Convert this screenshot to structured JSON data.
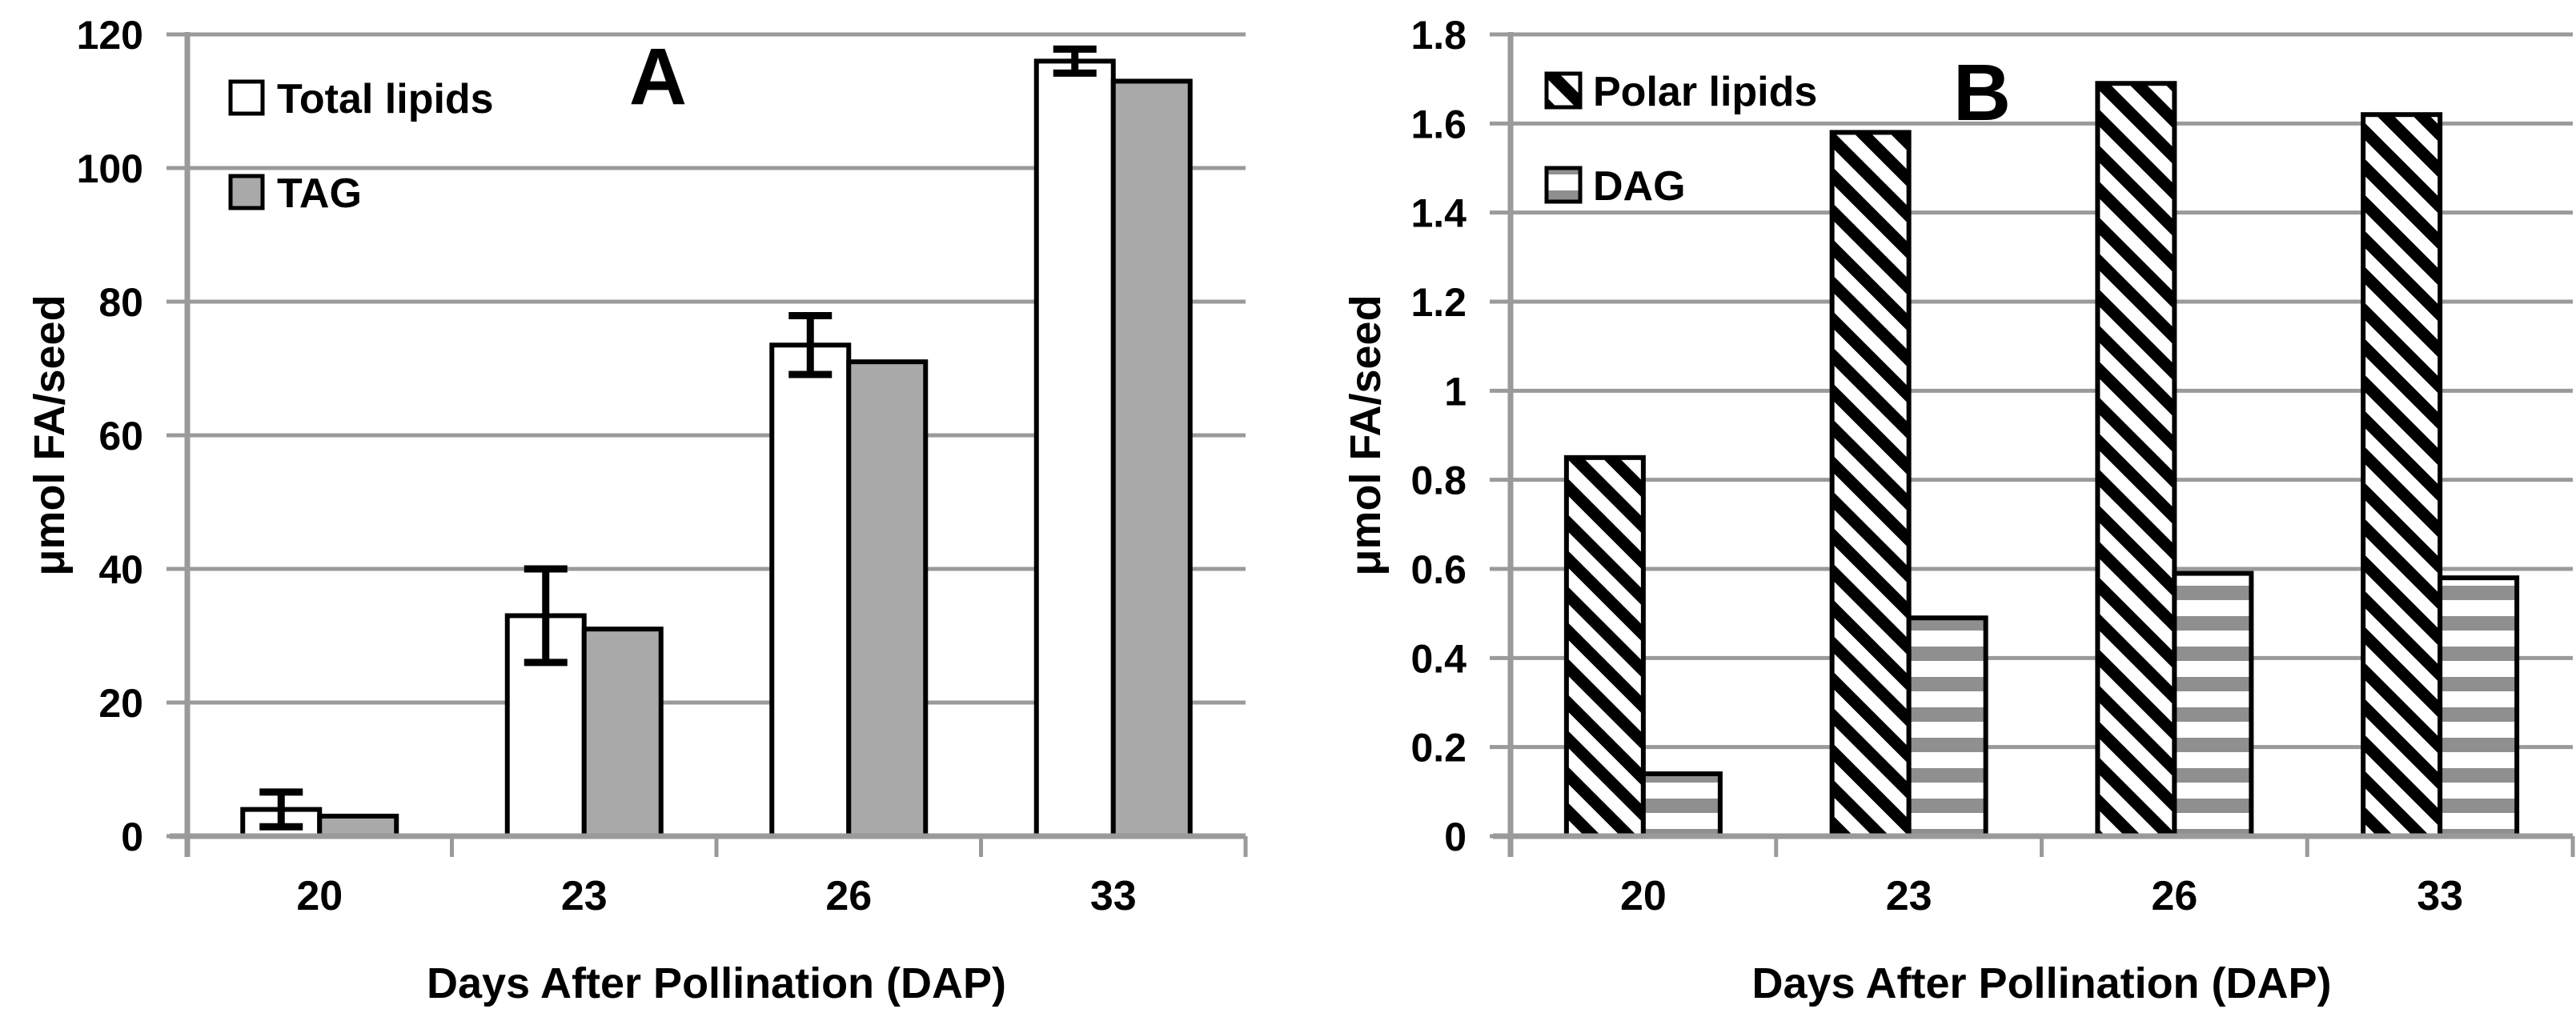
{
  "figure": {
    "description": "Two-panel bar chart figure",
    "panels": [
      "A",
      "B"
    ]
  },
  "colors": {
    "background": "#ffffff",
    "axis": "#9a9a9a",
    "grid": "#9a9a9a",
    "text": "#000000",
    "bar_outline": "#000000",
    "total_lipids_fill": "#ffffff",
    "tag_fill": "#a9a9a9",
    "hatch_stroke": "#000000",
    "dag_stripe": "#8f8f8f"
  },
  "chart_data": [
    {
      "panel_label": "A",
      "type": "bar",
      "categories": [
        "20",
        "23",
        "26",
        "33"
      ],
      "series": [
        {
          "name": "Total lipids",
          "style": "white",
          "values": [
            4,
            33,
            73.5,
            116
          ],
          "errors": [
            2.6,
            7,
            4.4,
            1.8
          ]
        },
        {
          "name": "TAG",
          "style": "solid-gray",
          "values": [
            3,
            31,
            71,
            113
          ]
        }
      ],
      "xlabel": "Days After Pollination (DAP)",
      "ylabel": "μmol FA/seed",
      "ylim": [
        0,
        120
      ],
      "ytick_labels": [
        "0",
        "20",
        "40",
        "60",
        "80",
        "100",
        "120"
      ],
      "grid": true,
      "legend_position": "top-left"
    },
    {
      "panel_label": "B",
      "type": "bar",
      "categories": [
        "20",
        "23",
        "26",
        "33"
      ],
      "series": [
        {
          "name": "Polar lipids",
          "style": "diagonal-hatch",
          "values": [
            0.85,
            1.58,
            1.69,
            1.62
          ]
        },
        {
          "name": "DAG",
          "style": "horizontal-stripes",
          "values": [
            0.14,
            0.49,
            0.59,
            0.58
          ]
        }
      ],
      "xlabel": "Days After Pollination (DAP)",
      "ylabel": "μmol FA/seed",
      "ylim": [
        0,
        1.8
      ],
      "ytick_labels": [
        "0",
        "0.2",
        "0.4",
        "0.6",
        "0.8",
        "1",
        "1.2",
        "1.4",
        "1.6",
        "1.8"
      ],
      "grid": true,
      "legend_position": "top-left"
    }
  ]
}
